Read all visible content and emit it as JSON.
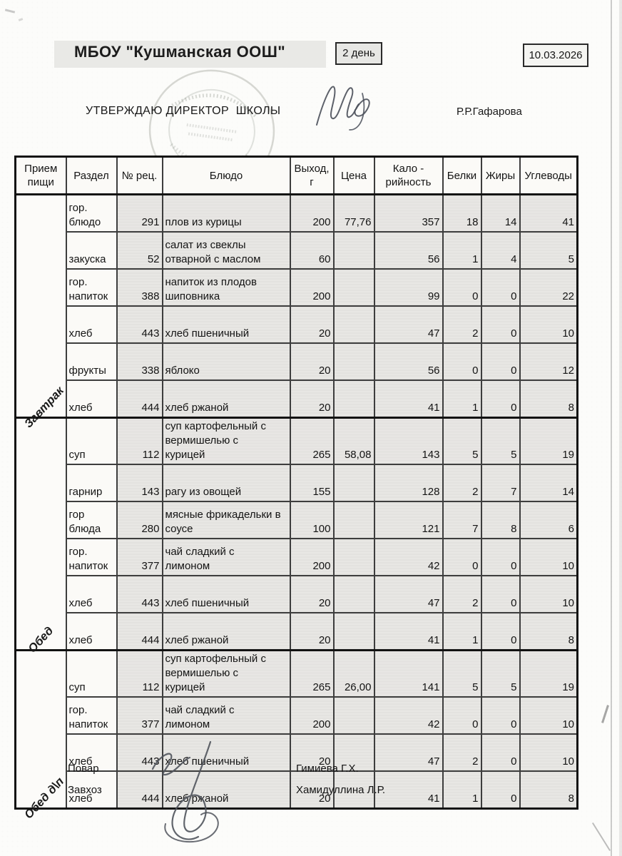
{
  "page": {
    "title": "МБОУ \"Кушманская ООШ\"",
    "day_label": "2 день",
    "date": "10.03.2026",
    "approve_line": "УТВЕРЖДАЮ ДИРЕКТОР  ШКОЛЫ",
    "director_name": "Р.Р.Гафарова"
  },
  "table": {
    "headers": [
      "Прием\nпищи",
      "Раздел",
      "№ рец.",
      "Блюдо",
      "Выход,\nг",
      "Цена",
      "Кало -\nрийность",
      "Белки",
      "Жиры",
      "Углеводы"
    ],
    "sections": [
      {
        "meal": "Завтрак",
        "rows": [
          {
            "razdel": "гор.\nблюдо",
            "rec": "291",
            "dish": "плов из курицы",
            "out": "200",
            "price": "77,76",
            "kcal": "357",
            "protein": "18",
            "fat": "14",
            "carbs": "41"
          },
          {
            "razdel": "закуска",
            "rec": "52",
            "dish": "салат из свеклы\nотварной с маслом",
            "out": "60",
            "price": "",
            "kcal": "56",
            "protein": "1",
            "fat": "4",
            "carbs": "5"
          },
          {
            "razdel": "гор.\nнапиток",
            "rec": "388",
            "dish": "напиток из плодов\nшиповника",
            "out": "200",
            "price": "",
            "kcal": "99",
            "protein": "0",
            "fat": "0",
            "carbs": "22"
          },
          {
            "razdel": "хлеб",
            "rec": "443",
            "dish": "хлеб пшеничный",
            "out": "20",
            "price": "",
            "kcal": "47",
            "protein": "2",
            "fat": "0",
            "carbs": "10"
          },
          {
            "razdel": "фрукты",
            "rec": "338",
            "dish": "яблоко",
            "out": "20",
            "price": "",
            "kcal": "56",
            "protein": "0",
            "fat": "0",
            "carbs": "12"
          },
          {
            "razdel": "хлеб",
            "rec": "444",
            "dish": "хлеб ржаной",
            "out": "20",
            "price": "",
            "kcal": "41",
            "protein": "1",
            "fat": "0",
            "carbs": "8"
          }
        ]
      },
      {
        "meal": "Обед",
        "rows": [
          {
            "razdel": "суп",
            "rec": "112",
            "dish": "суп картофельный с\nвермишелью с\nкурицей",
            "out": "265",
            "price": "58,08",
            "kcal": "143",
            "protein": "5",
            "fat": "5",
            "carbs": "19"
          },
          {
            "razdel": "гарнир",
            "rec": "143",
            "dish": "рагу из овощей",
            "out": "155",
            "price": "",
            "kcal": "128",
            "protein": "2",
            "fat": "7",
            "carbs": "14"
          },
          {
            "razdel": "гор\nблюда",
            "rec": "280",
            "dish": "мясные фрикадельки в\nсоусе",
            "out": "100",
            "price": "",
            "kcal": "121",
            "protein": "7",
            "fat": "8",
            "carbs": "6"
          },
          {
            "razdel": "гор.\nнапиток",
            "rec": "377",
            "dish": "чай сладкий с\nлимоном",
            "out": "200",
            "price": "",
            "kcal": "42",
            "protein": "0",
            "fat": "0",
            "carbs": "10"
          },
          {
            "razdel": "хлеб",
            "rec": "443",
            "dish": "хлеб пшеничный",
            "out": "20",
            "price": "",
            "kcal": "47",
            "protein": "2",
            "fat": "0",
            "carbs": "10"
          },
          {
            "razdel": "хлеб",
            "rec": "444",
            "dish": "хлеб ржаной",
            "out": "20",
            "price": "",
            "kcal": "41",
            "protein": "1",
            "fat": "0",
            "carbs": "8"
          }
        ]
      },
      {
        "meal": "Обед д\\п",
        "rows": [
          {
            "razdel": "суп",
            "rec": "112",
            "dish": "суп картофельный с\nвермишелью с\nкурицей",
            "out": "265",
            "price": "26,00",
            "kcal": "141",
            "protein": "5",
            "fat": "5",
            "carbs": "19"
          },
          {
            "razdel": "гор.\nнапиток",
            "rec": "377",
            "dish": "чай сладкий с\nлимоном",
            "out": "200",
            "price": "",
            "kcal": "42",
            "protein": "0",
            "fat": "0",
            "carbs": "10"
          },
          {
            "razdel": "хлеб",
            "rec": "443",
            "dish": "хлеб пшеничный",
            "out": "20",
            "price": "",
            "kcal": "47",
            "protein": "2",
            "fat": "0",
            "carbs": "10"
          },
          {
            "razdel": "хлеб",
            "rec": "444",
            "dish": "хлеб ржаной",
            "out": "20",
            "price": "",
            "kcal": "41",
            "protein": "1",
            "fat": "0",
            "carbs": "8"
          }
        ]
      }
    ]
  },
  "footer": {
    "cook_label": "Повар",
    "cook_name": "Гимиева Г.Х.",
    "steward_label": "Завхоз",
    "steward_name": "Хамидуллина Л.Р."
  }
}
